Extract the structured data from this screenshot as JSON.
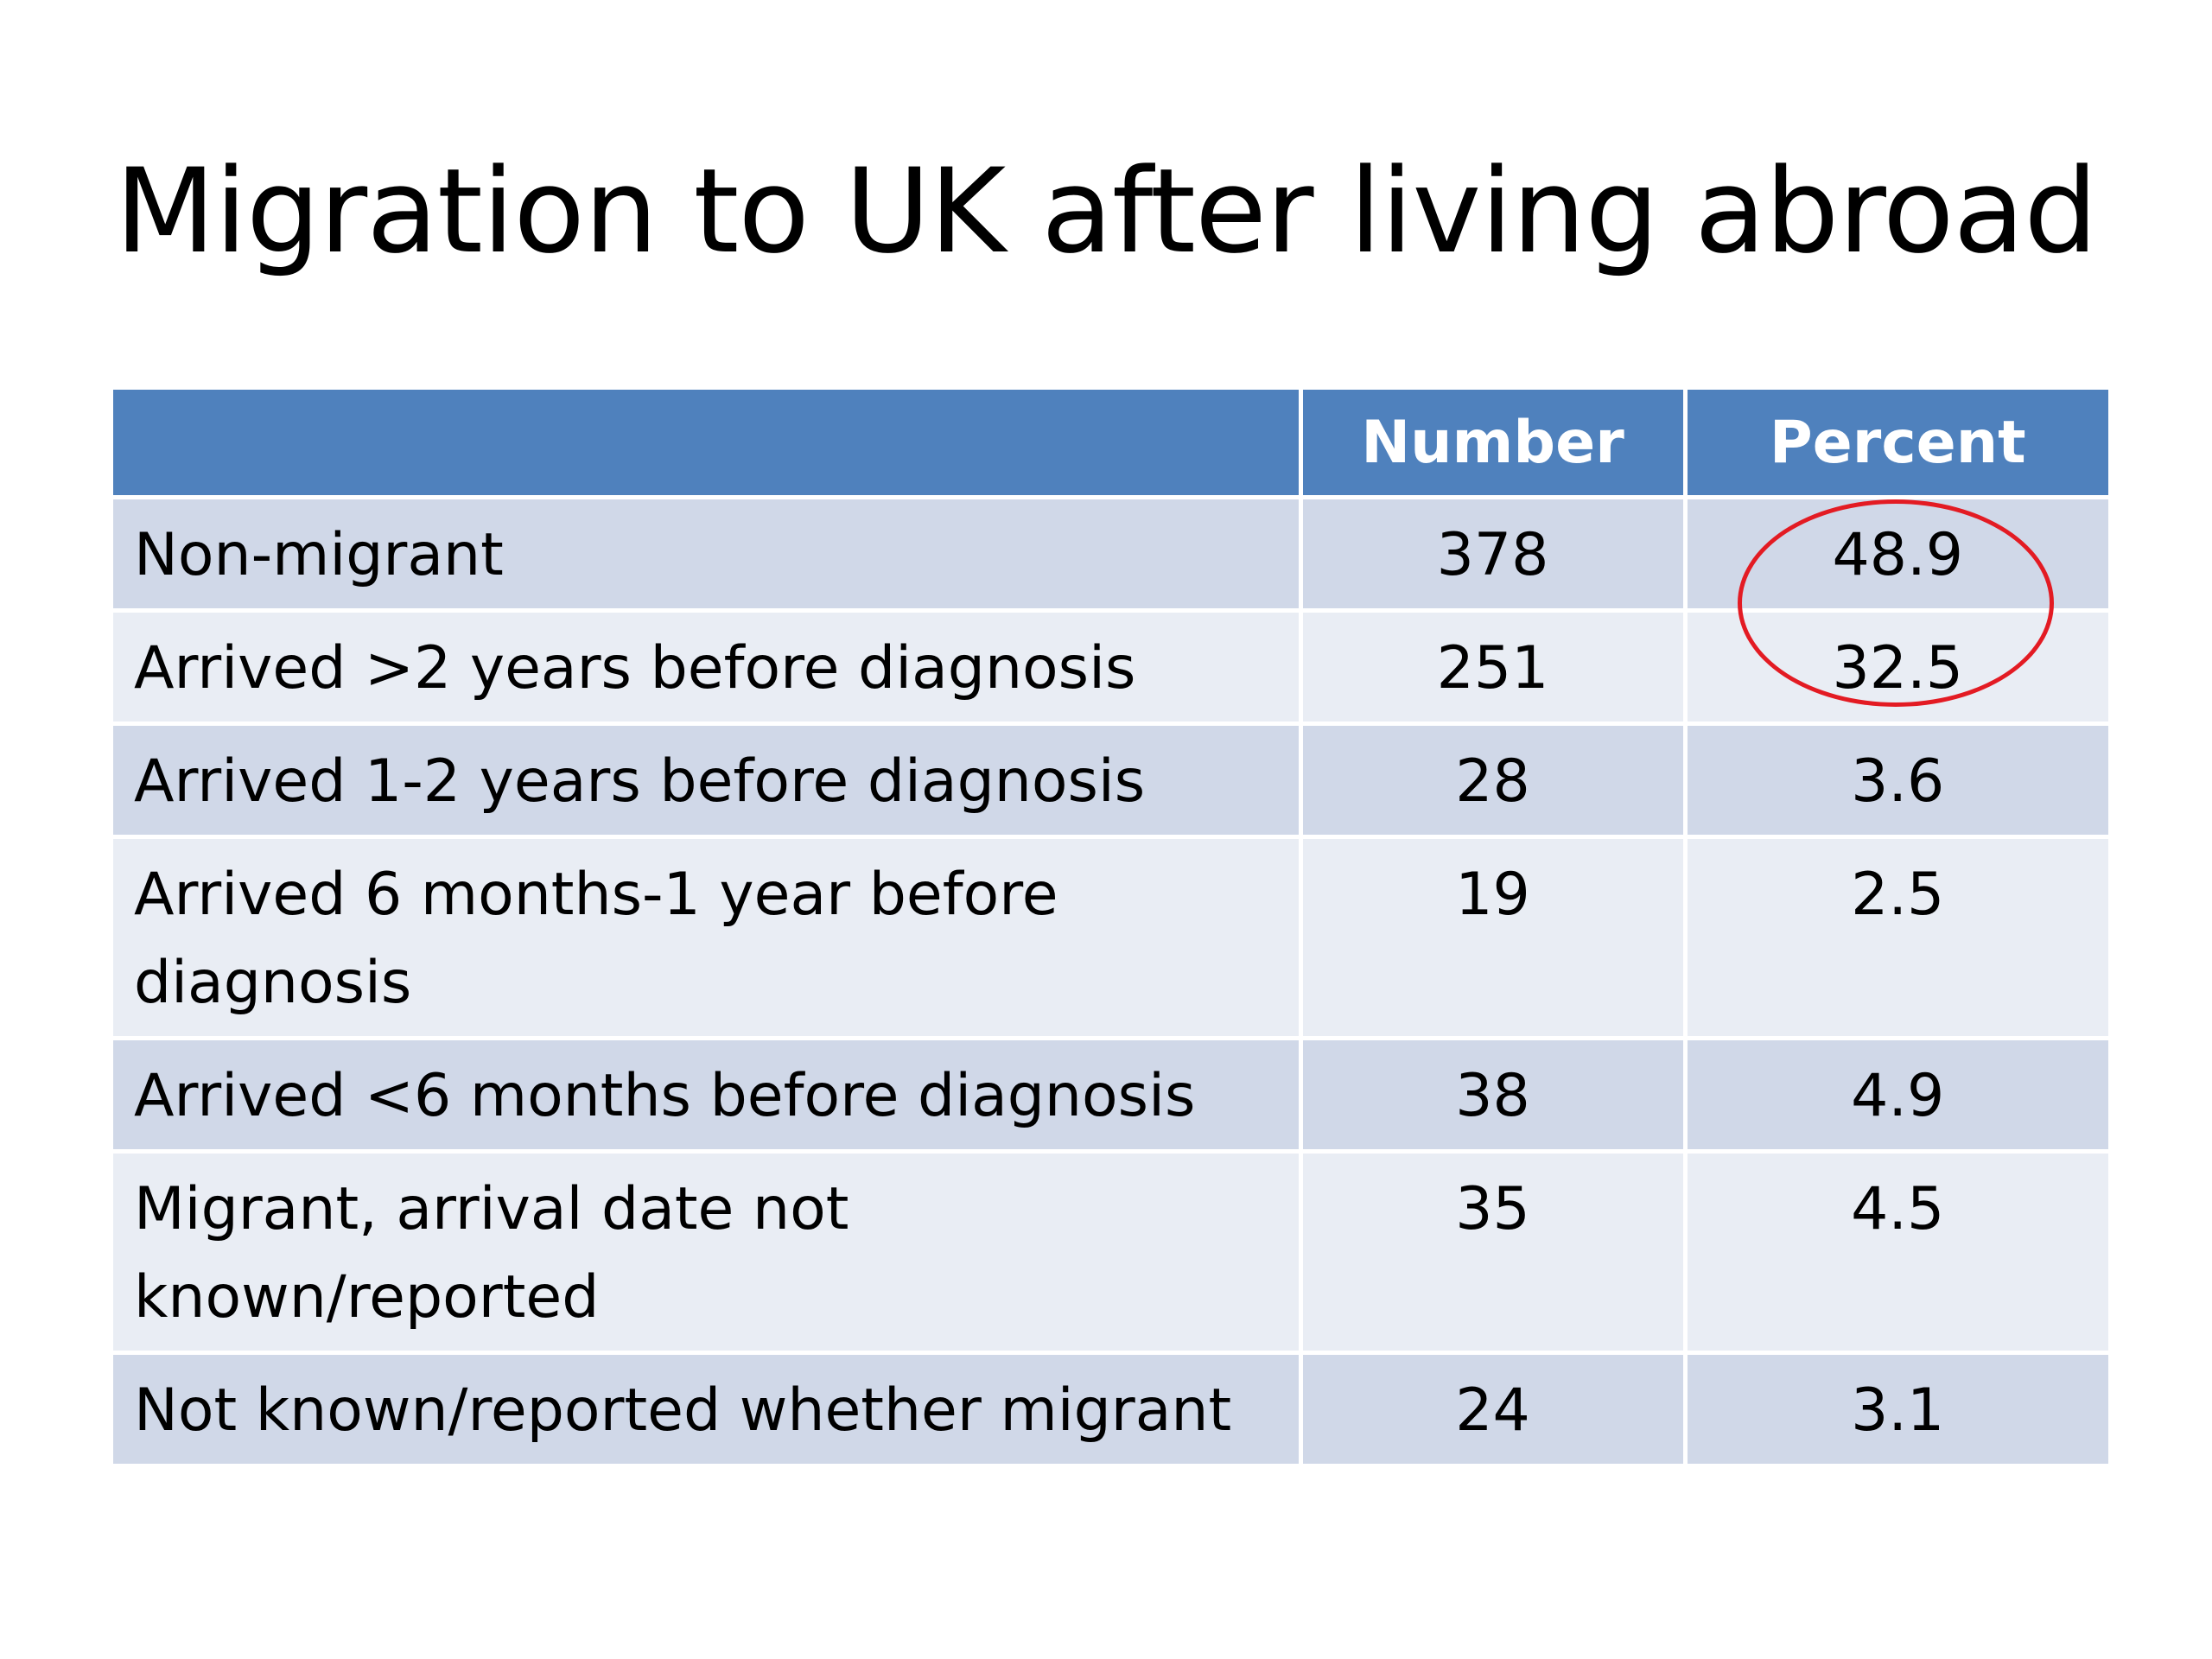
{
  "slide": {
    "title": "Migration to UK after living abroad"
  },
  "table": {
    "headers": [
      "",
      "Number",
      "Percent"
    ],
    "rows": [
      {
        "label": "Non-migrant",
        "number": "378",
        "percent": "48.9"
      },
      {
        "label": "Arrived >2 years before diagnosis",
        "number": "251",
        "percent": "32.5"
      },
      {
        "label": "Arrived 1-2 years before diagnosis",
        "number": "28",
        "percent": "3.6"
      },
      {
        "label": "Arrived 6 months-1 year before diagnosis",
        "number": "19",
        "percent": "2.5"
      },
      {
        "label": "Arrived <6 months before diagnosis",
        "number": "38",
        "percent": "4.9"
      },
      {
        "label": "Migrant, arrival date not known/reported",
        "number": "35",
        "percent": "4.5"
      },
      {
        "label": "Not known/reported whether migrant",
        "number": "24",
        "percent": "3.1"
      }
    ]
  },
  "colors": {
    "header_bg": "#4f81bd",
    "row_dark": "#d0d8e8",
    "row_light": "#e9edf4",
    "highlight": "#e31b23"
  }
}
